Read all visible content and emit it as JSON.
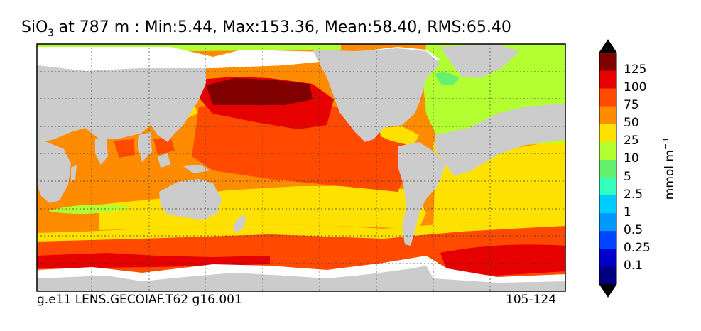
{
  "title": {
    "species_main": "SiO",
    "species_sub": "3",
    "rest": " at 787 m : Min:5.44, Max:153.36, Mean:58.40, RMS:65.40"
  },
  "footer": {
    "left": "g.e11 LENS.GECOIAF.T62 g16.001",
    "right": "105-124"
  },
  "colorbar": {
    "units_main": "mmol m",
    "units_sup": "−3",
    "labels": [
      "125",
      "100",
      "75",
      "50",
      "25",
      "10",
      "5",
      "2.5",
      "1",
      "0.5",
      "0.25",
      "0.1"
    ],
    "colors": [
      "#000080",
      "#0000cd",
      "#0044ff",
      "#0099ff",
      "#00ccff",
      "#33ffc0",
      "#66f070",
      "#b4ff32",
      "#ffe100",
      "#ff8c00",
      "#ff4a00",
      "#e60000",
      "#800000"
    ]
  },
  "map_colors": {
    "land": "#cccccc",
    "ice": "#ffffff",
    "c5": "#66f070",
    "c10": "#b4ff32",
    "c25": "#ffe100",
    "c50": "#ff8c00",
    "c75": "#ff4a00",
    "c100": "#e60000",
    "c125": "#800000"
  }
}
